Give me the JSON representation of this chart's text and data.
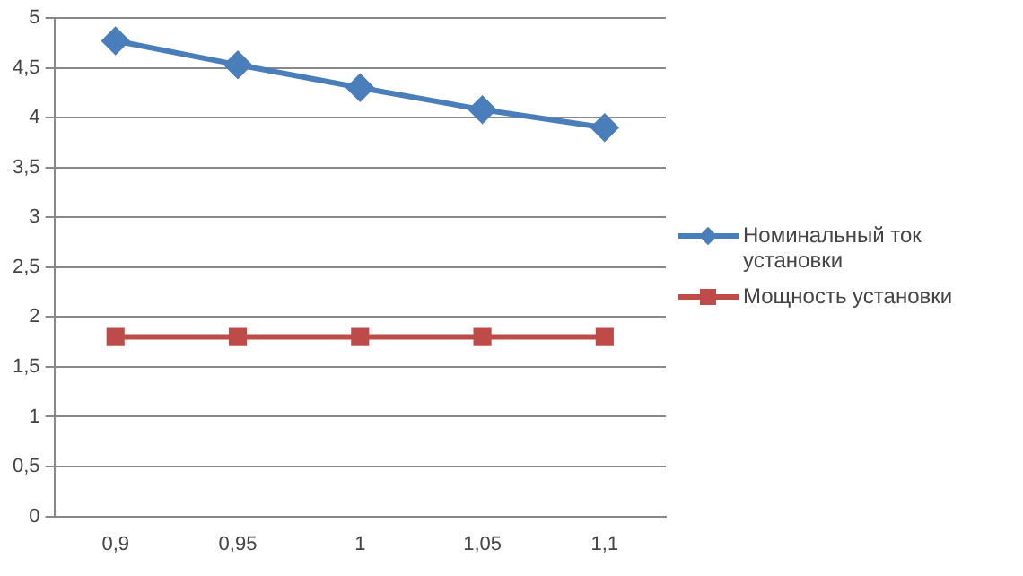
{
  "chart_data": {
    "type": "line",
    "categories": [
      "0,9",
      "0,95",
      "1",
      "1,05",
      "1,1"
    ],
    "series": [
      {
        "name": "Номинальный ток установки",
        "color": "#4a7ebb",
        "marker": "diamond",
        "values": [
          4.77,
          4.53,
          4.3,
          4.08,
          3.9
        ]
      },
      {
        "name": "Мощность установки",
        "color": "#be4b48",
        "marker": "square",
        "values": [
          1.8,
          1.8,
          1.8,
          1.8,
          1.8
        ]
      }
    ],
    "ylim": [
      0,
      5
    ],
    "yticks": [
      {
        "value": 0,
        "label": "0"
      },
      {
        "value": 0.5,
        "label": "0,5"
      },
      {
        "value": 1,
        "label": "1"
      },
      {
        "value": 1.5,
        "label": "1,5"
      },
      {
        "value": 2,
        "label": "2"
      },
      {
        "value": 2.5,
        "label": "2,5"
      },
      {
        "value": 3,
        "label": "3"
      },
      {
        "value": 3.5,
        "label": "3,5"
      },
      {
        "value": 4,
        "label": "4"
      },
      {
        "value": 4.5,
        "label": "4,5"
      },
      {
        "value": 5,
        "label": "5"
      }
    ],
    "grid": "y",
    "legend": "right"
  }
}
